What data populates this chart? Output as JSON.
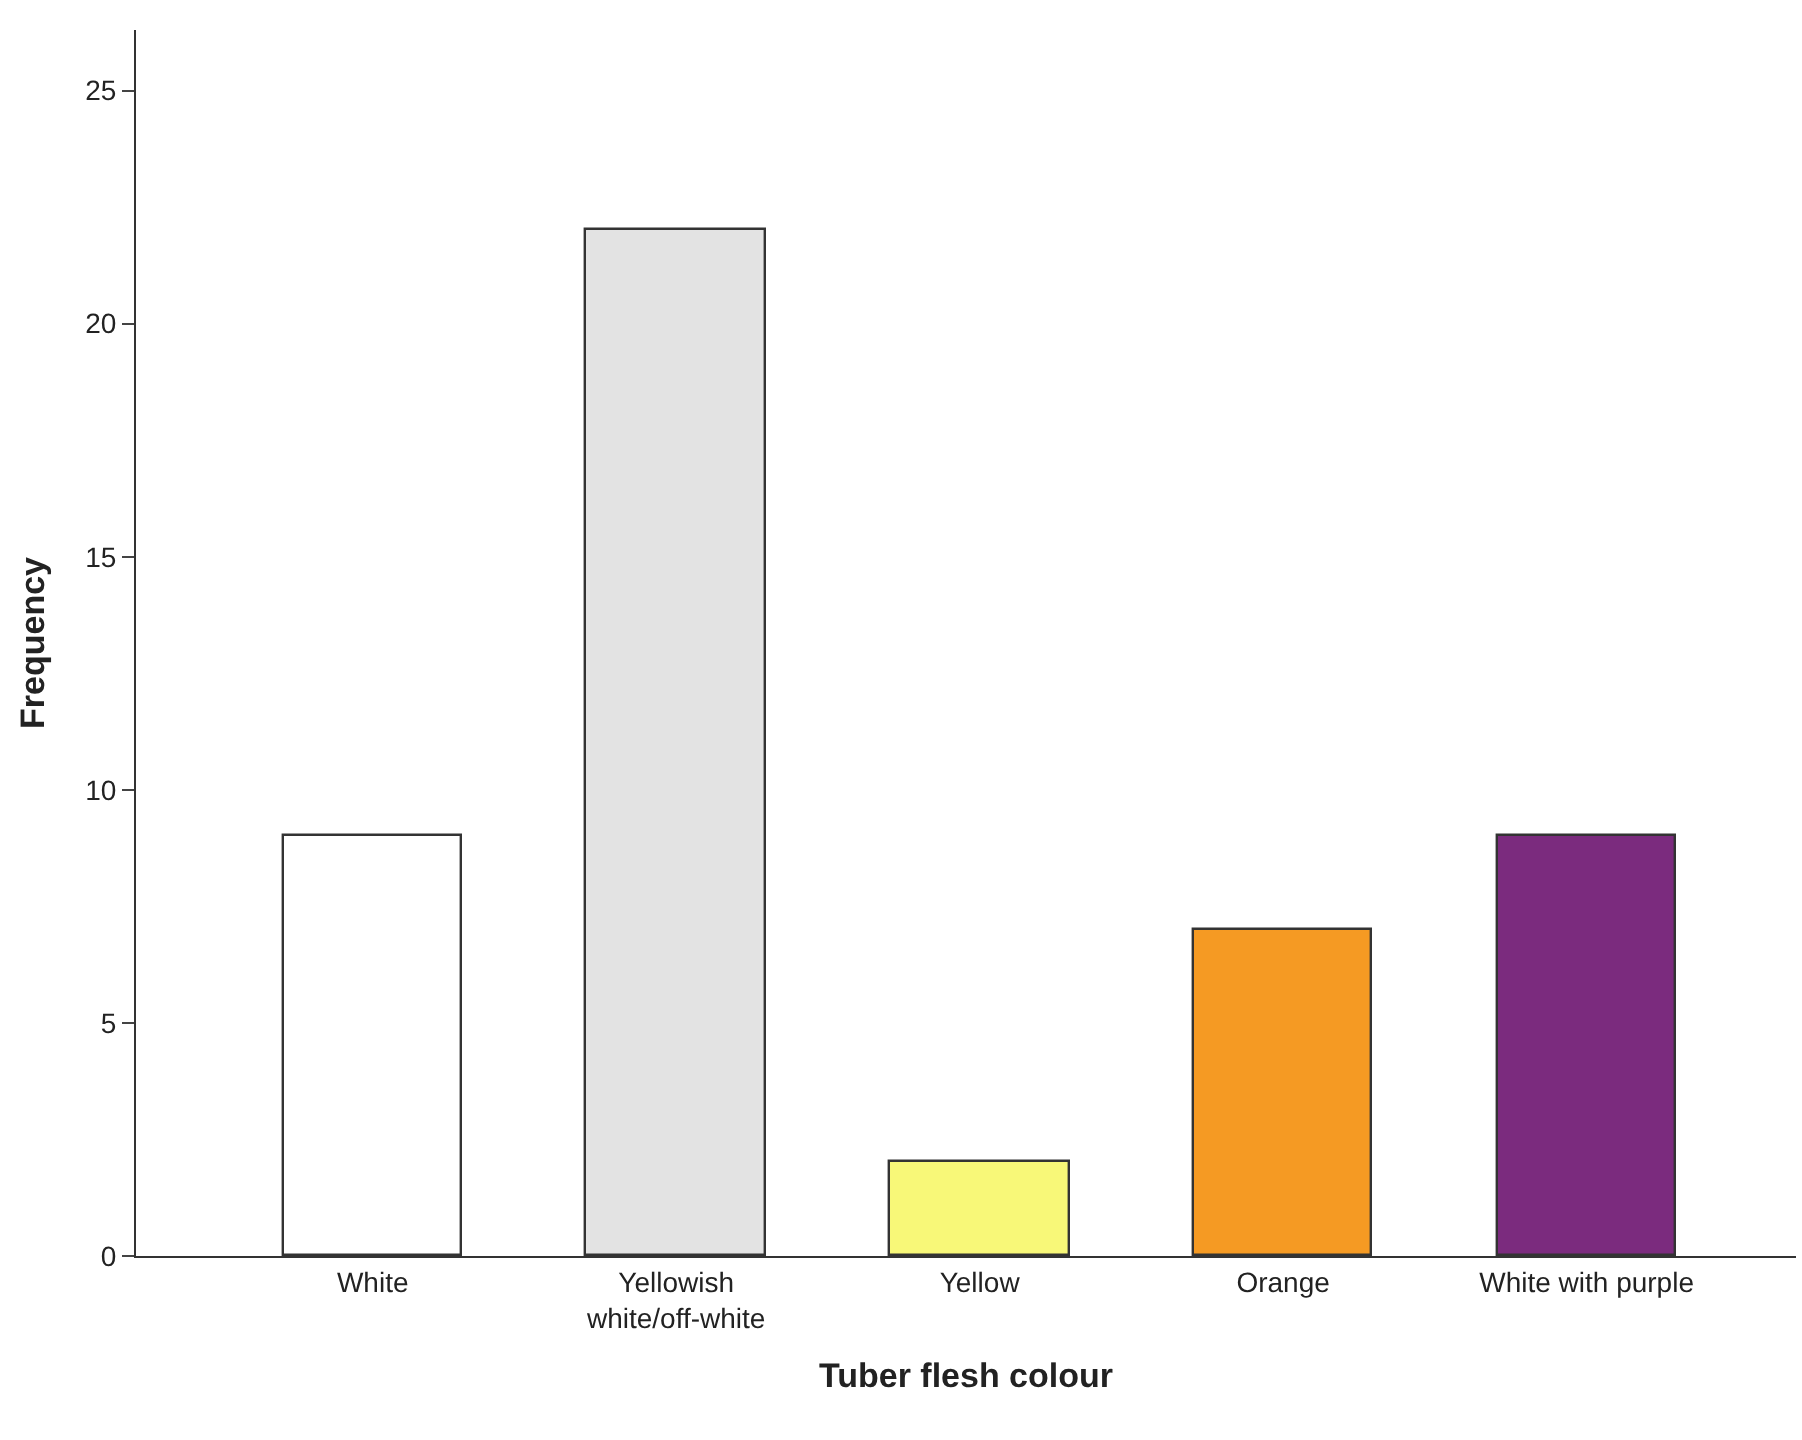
{
  "chart_data": {
    "type": "bar",
    "xlabel": "Tuber flesh colour",
    "ylabel": "Frequency",
    "categories": [
      "White",
      "Yellowish white/off-white",
      "Yellow",
      "Orange",
      "White with purple"
    ],
    "values": [
      9,
      22,
      2,
      7,
      9
    ],
    "colors": [
      "#ffffff",
      "#e3e3e3",
      "#f8f878",
      "#f59a23",
      "#7b2b7e"
    ],
    "ylim": [
      0,
      26.3
    ],
    "yticks": [
      0,
      5,
      10,
      15,
      20,
      25
    ]
  }
}
